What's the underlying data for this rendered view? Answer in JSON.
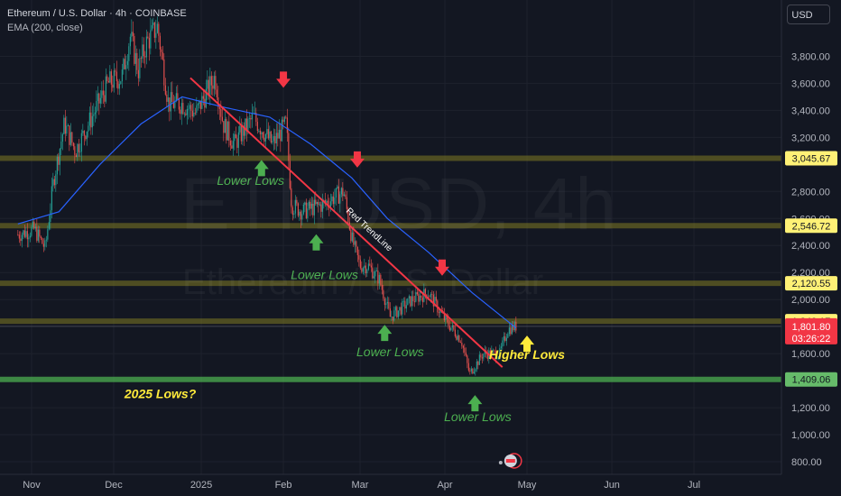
{
  "header": {
    "title": "Ethereum / U.S. Dollar · 4h · COINBASE",
    "indicator": "EMA (200, close)",
    "currency_button": "USD"
  },
  "watermark": {
    "symbol": "ETHUSD, 4h",
    "name": "Ethereum / U.S. Dollar"
  },
  "colors": {
    "background": "#131722",
    "grid": "#1e222d",
    "up_candle": "#26a69a",
    "down_candle": "#ef5350",
    "ema": "#2962ff",
    "trendline": "#f23645",
    "level_lines": "#7f7a22",
    "support_line": "#4caf50",
    "annotation_green": "#4caf50",
    "annotation_yellow": "#ffeb3b",
    "arrow_red": "#f23645",
    "label_yellow": "#fff176",
    "label_green": "#66bb6a",
    "label_red": "#f23645"
  },
  "chart_data": {
    "type": "candlestick",
    "y_axis": {
      "ticks": [
        "3,800.00",
        "3,600.00",
        "3,400.00",
        "3,200.00",
        "2,800.00",
        "2,600.00",
        "2,400.00",
        "2,200.00",
        "2,000.00",
        "1,600.00",
        "1,200.00",
        "1,000.00",
        "800.00"
      ],
      "tick_values": [
        3800,
        3600,
        3400,
        3200,
        2800,
        2600,
        2400,
        2200,
        2000,
        1600,
        1200,
        1000,
        800
      ],
      "range": [
        680,
        4150
      ]
    },
    "x_axis": {
      "ticks": [
        "Nov",
        "Dec",
        "2025",
        "Feb",
        "Mar",
        "Apr",
        "May",
        "Jun",
        "Jul"
      ]
    },
    "price_path": [
      {
        "x": "2024-10-26",
        "y": 2480
      },
      {
        "x": "2024-11-01",
        "y": 2520
      },
      {
        "x": "2024-11-05",
        "y": 2380
      },
      {
        "x": "2024-11-08",
        "y": 2880
      },
      {
        "x": "2024-11-12",
        "y": 3300
      },
      {
        "x": "2024-11-16",
        "y": 3100
      },
      {
        "x": "2024-11-22",
        "y": 3350
      },
      {
        "x": "2024-11-28",
        "y": 3600
      },
      {
        "x": "2024-12-03",
        "y": 3650
      },
      {
        "x": "2024-12-06",
        "y": 3950
      },
      {
        "x": "2024-12-09",
        "y": 3700
      },
      {
        "x": "2024-12-12",
        "y": 3900
      },
      {
        "x": "2024-12-16",
        "y": 4020
      },
      {
        "x": "2024-12-20",
        "y": 3450
      },
      {
        "x": "2024-12-25",
        "y": 3450
      },
      {
        "x": "2024-12-30",
        "y": 3380
      },
      {
        "x": "2025-01-06",
        "y": 3650
      },
      {
        "x": "2025-01-09",
        "y": 3300
      },
      {
        "x": "2025-01-13",
        "y": 3150
      },
      {
        "x": "2025-01-20",
        "y": 3350
      },
      {
        "x": "2025-01-27",
        "y": 3150
      },
      {
        "x": "2025-02-01",
        "y": 3300
      },
      {
        "x": "2025-02-03",
        "y": 2700
      },
      {
        "x": "2025-02-07",
        "y": 2650
      },
      {
        "x": "2025-02-14",
        "y": 2700
      },
      {
        "x": "2025-02-22",
        "y": 2800
      },
      {
        "x": "2025-02-25",
        "y": 2450
      },
      {
        "x": "2025-02-28",
        "y": 2250
      },
      {
        "x": "2025-03-03",
        "y": 2250
      },
      {
        "x": "2025-03-07",
        "y": 2150
      },
      {
        "x": "2025-03-11",
        "y": 1870
      },
      {
        "x": "2025-03-19",
        "y": 2000
      },
      {
        "x": "2025-03-25",
        "y": 2050
      },
      {
        "x": "2025-03-31",
        "y": 1850
      },
      {
        "x": "2025-04-06",
        "y": 1700
      },
      {
        "x": "2025-04-09",
        "y": 1450
      },
      {
        "x": "2025-04-14",
        "y": 1600
      },
      {
        "x": "2025-04-20",
        "y": 1600
      },
      {
        "x": "2025-04-23",
        "y": 1780
      },
      {
        "x": "2025-04-26",
        "y": 1802
      }
    ],
    "ema_200": [
      {
        "x": "2024-10-26",
        "y": 2560
      },
      {
        "x": "2024-11-10",
        "y": 2650
      },
      {
        "x": "2024-11-25",
        "y": 3000
      },
      {
        "x": "2024-12-10",
        "y": 3300
      },
      {
        "x": "2024-12-25",
        "y": 3500
      },
      {
        "x": "2025-01-10",
        "y": 3420
      },
      {
        "x": "2025-01-26",
        "y": 3350
      },
      {
        "x": "2025-02-10",
        "y": 3150
      },
      {
        "x": "2025-02-25",
        "y": 2900
      },
      {
        "x": "2025-03-10",
        "y": 2600
      },
      {
        "x": "2025-03-25",
        "y": 2350
      },
      {
        "x": "2025-04-10",
        "y": 2050
      },
      {
        "x": "2025-04-26",
        "y": 1790
      }
    ],
    "horizontal_levels": [
      {
        "label": "3,045.67",
        "value": 3045.67,
        "kind": "resistance"
      },
      {
        "label": "2,546.72",
        "value": 2546.72,
        "kind": "resistance"
      },
      {
        "label": "2,120.55",
        "value": 2120.55,
        "kind": "resistance"
      },
      {
        "label": "1,840.17",
        "value": 1840.17,
        "kind": "resistance"
      },
      {
        "label": "1,409.06",
        "value": 1409.06,
        "kind": "support"
      }
    ],
    "current_price": {
      "label": "1,801.80",
      "countdown": "03:26:22",
      "value": 1801.8
    },
    "trendline": {
      "label": "Red TrendLine",
      "start": {
        "x": "2024-12-28",
        "y": 3640
      },
      "end": {
        "x": "2025-04-21",
        "y": 1500
      }
    },
    "annotations": [
      {
        "text": "Lower Lows",
        "color": "green",
        "at": {
          "x": "2025-01-19",
          "y": 2850
        }
      },
      {
        "text": "Lower Lows",
        "color": "green",
        "at": {
          "x": "2025-02-15",
          "y": 2150
        }
      },
      {
        "text": "Lower Lows",
        "color": "green",
        "at": {
          "x": "2025-03-11",
          "y": 1580
        }
      },
      {
        "text": "Lower Lows",
        "color": "green",
        "at": {
          "x": "2025-04-12",
          "y": 1100
        }
      },
      {
        "text": "Higher Lows",
        "color": "yellow",
        "at": {
          "x": "2025-04-30",
          "y": 1560
        }
      },
      {
        "text": "2025 Lows?",
        "color": "yellow",
        "at": {
          "x": "2024-12-17",
          "y": 1270
        }
      }
    ],
    "arrows": [
      {
        "dir": "down",
        "color": "red",
        "at": {
          "x": "2025-01-31",
          "y": 3620
        }
      },
      {
        "dir": "down",
        "color": "red",
        "at": {
          "x": "2025-02-27",
          "y": 3030
        }
      },
      {
        "dir": "down",
        "color": "red",
        "at": {
          "x": "2025-03-30",
          "y": 2230
        }
      },
      {
        "dir": "up",
        "color": "green",
        "at": {
          "x": "2025-01-23",
          "y": 2980
        }
      },
      {
        "dir": "up",
        "color": "green",
        "at": {
          "x": "2025-02-12",
          "y": 2430
        }
      },
      {
        "dir": "up",
        "color": "green",
        "at": {
          "x": "2025-03-09",
          "y": 1760
        }
      },
      {
        "dir": "up",
        "color": "green",
        "at": {
          "x": "2025-04-11",
          "y": 1240
        }
      },
      {
        "dir": "up",
        "color": "yellow",
        "at": {
          "x": "2025-04-30",
          "y": 1680
        }
      }
    ]
  }
}
